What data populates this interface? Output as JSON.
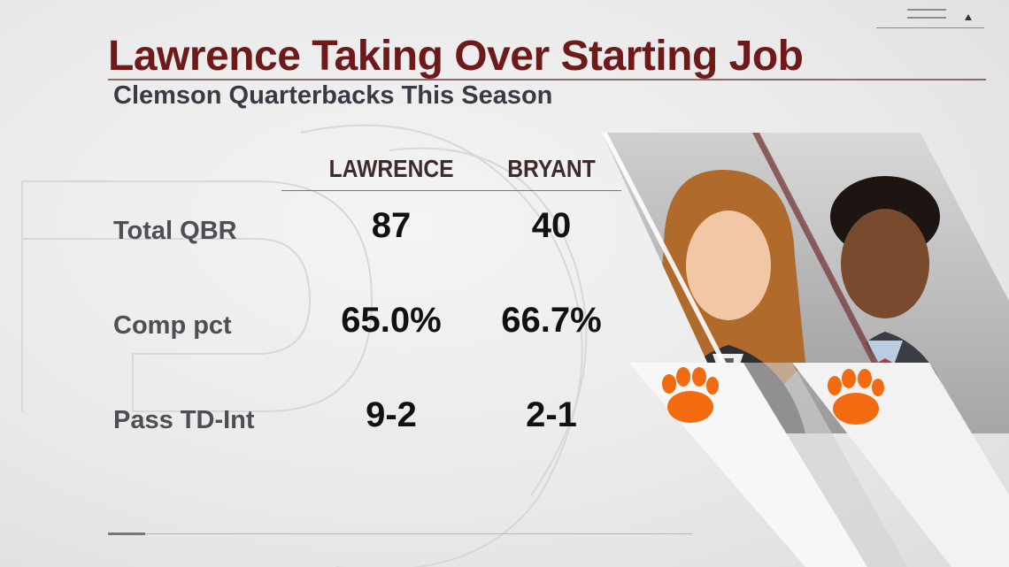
{
  "header": {
    "title": "Lawrence Taking Over Starting Job",
    "subtitle": "Clemson Quarterbacks This Season"
  },
  "table": {
    "columns": [
      "LAWRENCE",
      "BRYANT"
    ],
    "rows": [
      {
        "label": "Total QBR",
        "values": [
          "87",
          "40"
        ]
      },
      {
        "label": "Comp pct",
        "values": [
          "65.0%",
          "66.7%"
        ]
      },
      {
        "label": "Pass TD-Int",
        "values": [
          "9-2",
          "2-1"
        ]
      }
    ]
  },
  "players": [
    {
      "name": "LAWRENCE",
      "logo_icon": "clemson-paw-icon"
    },
    {
      "name": "BRYANT",
      "logo_icon": "clemson-paw-icon"
    }
  ],
  "colors": {
    "title": "#6e1a1a",
    "accent_orange": "#f26b10",
    "label": "#4e4e54"
  }
}
